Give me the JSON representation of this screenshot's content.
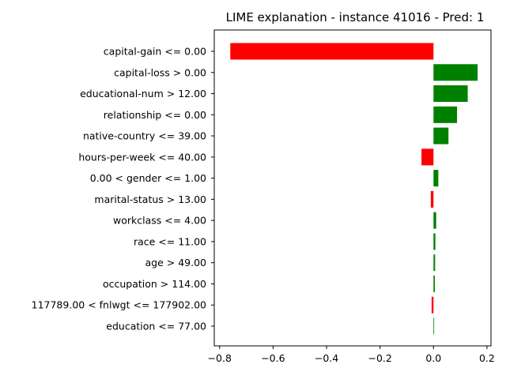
{
  "chart_data": {
    "type": "bar",
    "orientation": "horizontal",
    "title": "LIME explanation - instance 41016 - Pred: 1",
    "xlabel": "",
    "ylabel": "",
    "xlim": [
      -0.82,
      0.215
    ],
    "xticks": [
      -0.8,
      -0.6,
      -0.4,
      -0.2,
      0.0,
      0.2
    ],
    "xtick_labels": [
      "−0.8",
      "−0.6",
      "−0.4",
      "−0.2",
      "0.0",
      "0.2"
    ],
    "grid": false,
    "colors": {
      "positive": "#008000",
      "negative": "#ff0000"
    },
    "categories": [
      "capital-gain <= 0.00",
      "capital-loss > 0.00",
      "educational-num > 12.00",
      "relationship <= 0.00",
      "native-country <= 39.00",
      "hours-per-week <= 40.00",
      "0.00 < gender <= 1.00",
      "marital-status > 13.00",
      "workclass <= 4.00",
      "race <= 11.00",
      "age > 49.00",
      "occupation > 114.00",
      "117789.00 < fnlwgt <= 177902.00",
      "education <= 77.00"
    ],
    "values": [
      -0.76,
      0.165,
      0.128,
      0.088,
      0.056,
      -0.045,
      0.018,
      -0.01,
      0.01,
      0.007,
      0.006,
      0.005,
      -0.007,
      0.002
    ]
  }
}
